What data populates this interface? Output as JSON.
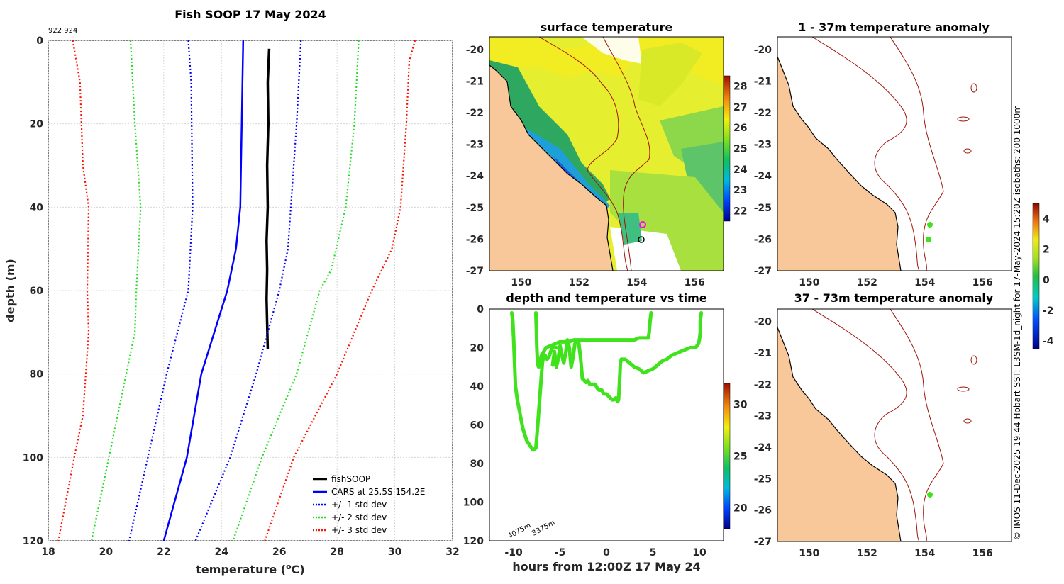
{
  "colors": {
    "fishsoop": "#000000",
    "cars": "#0000ff",
    "std1": "#0000ff",
    "std2": "#22dd22",
    "std3": "#ff1100",
    "land": "#f8c89a",
    "track": "#3fe21b",
    "isobath": "#a0140a"
  },
  "chart_data": [
    {
      "id": "profile",
      "type": "line",
      "title": "Fish SOOP 17 May 2024",
      "subtitle": "922 924",
      "xlabel": "temperature (",
      "xlabel_sup": "o",
      "xlabel_tail": "C)",
      "ylabel": "depth (m)",
      "xlim": [
        18,
        32
      ],
      "ylim": [
        0,
        120
      ],
      "xticks": [
        "18",
        "20",
        "22",
        "24",
        "26",
        "28",
        "30",
        "32"
      ],
      "yticks": [
        "0",
        "20",
        "40",
        "60",
        "80",
        "100",
        "120"
      ],
      "legend": {
        "position": "bottom-right",
        "entries": [
          "fishSOOP",
          "CARS at 25.5S 154.2E",
          "+/- 1 std dev",
          "+/- 2 std dev",
          "+/- 3 std dev"
        ]
      },
      "series": [
        {
          "name": "fishSOOP",
          "depth": [
            2,
            10,
            20,
            30,
            40,
            48,
            55,
            62,
            68,
            74
          ],
          "temp": [
            25.65,
            25.6,
            25.62,
            25.58,
            25.6,
            25.56,
            25.58,
            25.56,
            25.58,
            25.6
          ]
        },
        {
          "name": "CARS at 25.5S 154.2E",
          "depth": [
            0,
            20,
            40,
            50,
            60,
            80,
            100,
            120
          ],
          "temp": [
            24.75,
            24.7,
            24.65,
            24.5,
            24.2,
            23.3,
            22.8,
            22.0
          ]
        },
        {
          "name": "CARS -1 std",
          "depth": [
            0,
            10,
            40,
            60,
            80,
            100,
            120
          ],
          "temp": [
            22.85,
            22.95,
            23.0,
            22.85,
            22.1,
            21.45,
            20.8
          ]
        },
        {
          "name": "CARS +1 std",
          "depth": [
            0,
            20,
            40,
            50,
            60,
            80,
            100,
            120
          ],
          "temp": [
            26.75,
            26.6,
            26.4,
            26.3,
            26.0,
            25.2,
            24.3,
            23.1
          ]
        },
        {
          "name": "CARS -2 std",
          "depth": [
            0,
            20,
            40,
            60,
            70,
            80,
            100,
            120
          ],
          "temp": [
            20.85,
            21.0,
            21.2,
            21.05,
            21.0,
            20.7,
            20.1,
            19.5
          ]
        },
        {
          "name": "CARS +2 std",
          "depth": [
            0,
            20,
            40,
            55,
            60,
            80,
            100,
            120
          ],
          "temp": [
            28.75,
            28.6,
            28.3,
            27.8,
            27.4,
            26.6,
            25.4,
            24.4
          ]
        },
        {
          "name": "CARS -3 std",
          "depth": [
            0,
            10,
            30,
            40,
            60,
            70,
            80,
            90,
            100,
            120
          ],
          "temp": [
            18.85,
            19.1,
            19.2,
            19.4,
            19.35,
            19.4,
            19.3,
            19.2,
            18.9,
            18.35
          ]
        },
        {
          "name": "CARS +3 std",
          "depth": [
            0,
            5,
            20,
            40,
            50,
            60,
            80,
            100,
            120
          ],
          "temp": [
            30.7,
            30.5,
            30.4,
            30.2,
            29.9,
            29.2,
            28.0,
            26.5,
            25.5
          ]
        }
      ]
    },
    {
      "id": "surface",
      "type": "heatmap",
      "title": "surface temperature",
      "xlim": [
        148.9,
        157
      ],
      "ylim": [
        -27,
        -19.6
      ],
      "xticks": [
        "150",
        "152",
        "154",
        "156"
      ],
      "xtick_values": [
        150,
        152,
        154,
        156
      ],
      "yticks": [
        "-20",
        "-21",
        "-22",
        "-23",
        "-24",
        "-25",
        "-26",
        "-27"
      ],
      "ytick_values": [
        -20,
        -21,
        -22,
        -23,
        -24,
        -25,
        -26,
        -27
      ],
      "colorbar_ticks": [
        "28",
        "27",
        "26",
        "25",
        "24",
        "23",
        "22"
      ],
      "colorbar_range": [
        21.5,
        28.5
      ]
    },
    {
      "id": "timeseries",
      "type": "line",
      "title": "depth and temperature vs time",
      "xlabel": "hours from 12:00Z 17 May 24",
      "xlim": [
        -12.6,
        12.6
      ],
      "ylim": [
        0,
        120
      ],
      "xticks": [
        "-10",
        "-5",
        "0",
        "5",
        "10"
      ],
      "xtick_values": [
        -10,
        -5,
        0,
        5,
        10
      ],
      "yticks": [
        "0",
        "20",
        "40",
        "60",
        "80",
        "100",
        "120"
      ],
      "colorbar_ticks": [
        "30",
        "25",
        "20"
      ],
      "colorbar_range": [
        18,
        32
      ],
      "annotations": [
        "4075m",
        "3375m"
      ],
      "series": [
        {
          "name": "dive1",
          "hours": [
            -10.2,
            -10.1,
            -10.0,
            -9.8,
            -9.6,
            -9.4,
            -9.2,
            -9.0,
            -8.6,
            -8.2,
            -7.9,
            -7.6,
            -7.4,
            -7.2,
            -7.0,
            -6.9,
            -6.8,
            -6.7,
            -6.6,
            -6.5,
            -6.4,
            -6.2,
            -6.0,
            -5.8,
            -5.6,
            -5.4
          ],
          "depth": [
            2,
            5,
            15,
            40,
            47,
            52,
            57,
            62,
            68,
            71,
            73,
            72,
            60,
            47,
            34,
            28,
            25,
            24,
            24,
            25,
            26,
            25,
            22,
            20,
            20,
            20
          ]
        },
        {
          "name": "dive2",
          "hours": [
            -7.6,
            -7.55,
            -7.5,
            -7.45,
            -7.4,
            -7.3,
            -7.0,
            -6.5,
            -6.0,
            -5.5,
            -5.0,
            -4.5,
            -4.0,
            -3.5,
            -3.0,
            -2.5,
            -2.0,
            -1.5,
            -1.0,
            -0.5,
            0.0,
            0.5,
            1.0,
            1.5,
            2.0,
            2.5,
            3.0,
            3.5,
            4.0,
            4.5,
            4.6,
            4.7,
            4.8
          ],
          "depth": [
            2,
            10,
            20,
            25,
            29,
            30,
            24,
            20,
            19,
            18,
            17,
            17,
            17,
            16,
            16,
            16,
            16,
            16,
            16,
            16,
            16,
            16,
            16,
            16,
            16,
            16,
            16,
            15,
            15,
            15,
            12,
            6,
            2
          ]
        },
        {
          "name": "dive3",
          "hours": [
            -5.8,
            -5.6,
            -5.4,
            -5.2,
            -5.0,
            -4.8,
            -4.6,
            -4.4,
            -4.2,
            -4.0,
            -3.8,
            -3.6,
            -3.4,
            -3.2,
            -3.0,
            -2.9,
            -2.8,
            -2.7,
            -2.6,
            -2.4,
            -2.2,
            -2.0,
            -1.8,
            -1.5,
            -1.2,
            -1.0,
            -0.8,
            -0.5,
            -0.3,
            0.0,
            0.2,
            0.4,
            0.6,
            0.8,
            1.0,
            1.2,
            1.3,
            1.4,
            1.5,
            1.6,
            1.7,
            1.8,
            2.0,
            2.5,
            3.0,
            3.5,
            4.0,
            4.5,
            5.0,
            5.5,
            6.0,
            6.5,
            7.0,
            7.5,
            8.0,
            8.5,
            9.0,
            9.3,
            9.6,
            9.9,
            10.0,
            10.1,
            10.1,
            10.2
          ],
          "depth": [
            29,
            22,
            30,
            26,
            19,
            24,
            28,
            23,
            16,
            20,
            30,
            25,
            18,
            17,
            17,
            21,
            25,
            30,
            36,
            37,
            38,
            37,
            39,
            39,
            39,
            41,
            42,
            42,
            44,
            44,
            45,
            46,
            47,
            47,
            46,
            48,
            47,
            38,
            28,
            26,
            26,
            26,
            26,
            28,
            30,
            31,
            33,
            32,
            31,
            29,
            27,
            26,
            24,
            23,
            22,
            21,
            20,
            20,
            20,
            18,
            16,
            12,
            6,
            2
          ]
        }
      ]
    },
    {
      "id": "anomaly1",
      "type": "heatmap",
      "title": "1 - 37m temperature anomaly",
      "xlim": [
        148.9,
        157
      ],
      "ylim": [
        -27,
        -19.6
      ],
      "xticks": [
        "150",
        "152",
        "154",
        "156"
      ],
      "yticks": [
        "-20",
        "-21",
        "-22",
        "-23",
        "-24",
        "-25",
        "-26",
        "-27"
      ],
      "points": [
        {
          "lon": 154.2,
          "lat": -25.6
        },
        {
          "lon": 154.15,
          "lat": -26.0
        }
      ]
    },
    {
      "id": "anomaly2",
      "type": "heatmap",
      "title": "37 - 73m temperature anomaly",
      "xlim": [
        148.9,
        157
      ],
      "ylim": [
        -27,
        -19.6
      ],
      "xticks": [
        "150",
        "152",
        "154",
        "156"
      ],
      "yticks": [
        "-20",
        "-21",
        "-22",
        "-23",
        "-24",
        "-25",
        "-26",
        "-27"
      ],
      "colorbar_ticks": [
        "4",
        "2",
        "0",
        "-2",
        "-4"
      ],
      "colorbar_range": [
        -4.5,
        5
      ],
      "points": [
        {
          "lon": 154.2,
          "lat": -25.6
        }
      ]
    }
  ],
  "credit": "© IMOS 11-Dec-2025 19:44 Hobart SST: L3SM-1d_night for 17-May-2024 15:20Z isobaths: 200  1000m"
}
